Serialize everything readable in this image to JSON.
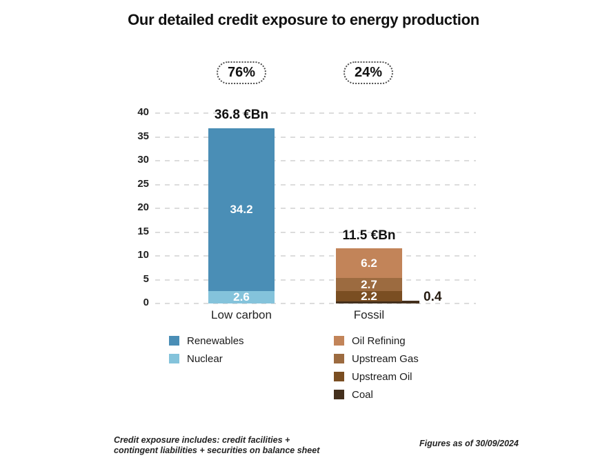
{
  "title": "Our detailed credit exposure to energy production",
  "badges": {
    "low_carbon": "76%",
    "fossil": "24%"
  },
  "chart_data": {
    "type": "bar",
    "stacked": true,
    "unit": "€Bn",
    "title": "Our detailed credit exposure to energy production",
    "ylim": [
      0,
      40
    ],
    "yticks": [
      0,
      5,
      10,
      15,
      20,
      25,
      30,
      35,
      40
    ],
    "grid": "horizontal dashed",
    "legend_position": "bottom",
    "categories": [
      "Low carbon",
      "Fossil"
    ],
    "bars": [
      {
        "category": "Low carbon",
        "share_label": "76%",
        "total": 36.8,
        "total_label": "36.8 €Bn",
        "segments": [
          {
            "name": "Renewables",
            "value": 34.2,
            "color": "#4A8EB6"
          },
          {
            "name": "Nuclear",
            "value": 2.6,
            "color": "#84C3DB"
          }
        ]
      },
      {
        "category": "Fossil",
        "share_label": "24%",
        "total": 11.5,
        "total_label": "11.5 €Bn",
        "segments": [
          {
            "name": "Oil Refining",
            "value": 6.2,
            "color": "#C28459"
          },
          {
            "name": "Upstream Gas",
            "value": 2.7,
            "color": "#9C6B40"
          },
          {
            "name": "Upstream Oil",
            "value": 2.2,
            "color": "#7A4E22"
          },
          {
            "name": "Coal",
            "value": 0.4,
            "color": "#44301D",
            "label_outside": true
          }
        ]
      }
    ]
  },
  "footnote": {
    "line1": "Credit exposure includes: credit facilities +",
    "line2": "contingent liabilities + securities on balance sheet"
  },
  "figures_note": "Figures as of 30/09/2024"
}
